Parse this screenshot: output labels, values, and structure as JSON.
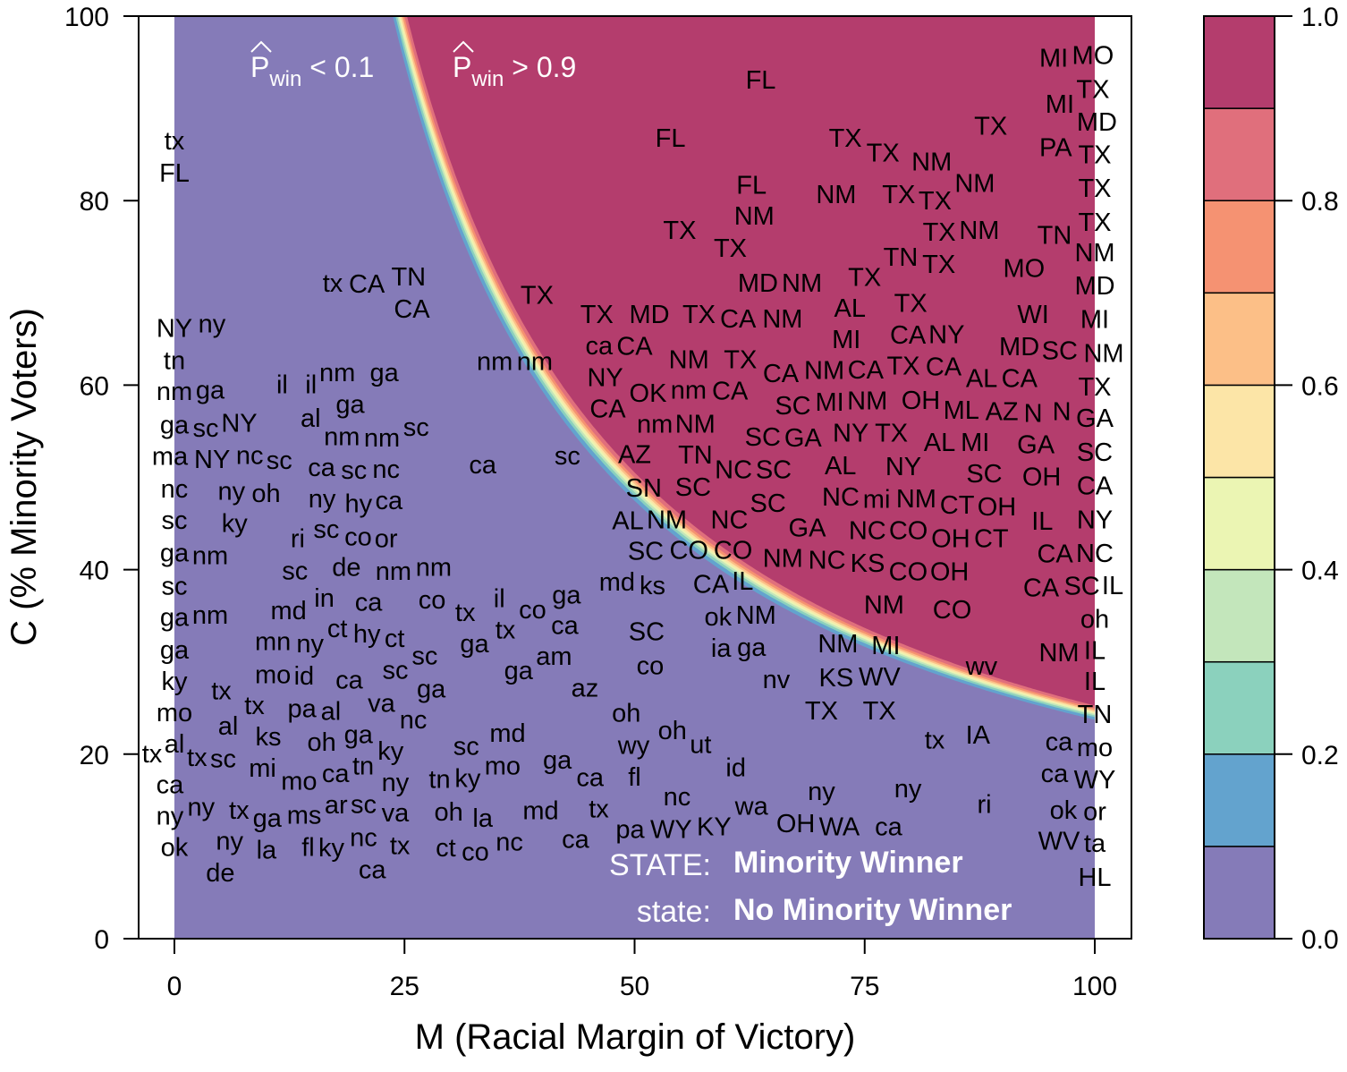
{
  "chart_data": {
    "type": "heatmap",
    "title": "",
    "xlabel": "M (Racial Margin of Victory)",
    "ylabel": "C (% Minority Voters)",
    "xlim": [
      0,
      100
    ],
    "ylim": [
      0,
      100
    ],
    "x_ticks": [
      "0",
      "25",
      "50",
      "75",
      "100"
    ],
    "y_ticks": [
      "0",
      "20",
      "40",
      "60",
      "80",
      "100"
    ],
    "surface": {
      "description_of_boundary": "P_win = 0.5 where M*C ≈ 2450",
      "midpoint_product": 2450,
      "scale": 35
    },
    "colorbar": {
      "breaks": [
        0,
        0.1,
        0.2,
        0.3,
        0.4,
        0.5,
        0.6,
        0.7,
        0.8,
        0.9,
        1.0
      ],
      "colors": [
        "#857BB8",
        "#63A3CE",
        "#8BD1BD",
        "#C3E6BB",
        "#EBF5B3",
        "#FCE5A7",
        "#FCBF87",
        "#F59272",
        "#E06F7C",
        "#B43D6D"
      ],
      "tick_labels": [
        "0.0",
        "0.2",
        "0.4",
        "0.6",
        "0.8",
        "1.0"
      ]
    },
    "annotations": {
      "low": {
        "p": "P",
        "sub": "win",
        "rest": " < 0.1"
      },
      "high": {
        "p": "P",
        "sub": "win",
        "rest": " > 0.9"
      },
      "legend_upper_key": "STATE:",
      "legend_upper_value": "Minority Winner",
      "legend_lower_key": "state:",
      "legend_lower_value": "No Minority Winner"
    },
    "points": [
      [
        "FL",
        63.7,
        93.0
      ],
      [
        "FL",
        53.9,
        86.7
      ],
      [
        "TX",
        72.9,
        86.7
      ],
      [
        "TX",
        76.5,
        85.1
      ],
      [
        "TX",
        88.7,
        88.0
      ],
      [
        "FL",
        62.7,
        81.6
      ],
      [
        "NM",
        63.0,
        80.6
      ],
      [
        "NM",
        71.9,
        80.6
      ],
      [
        "TX",
        78.7,
        80.6
      ],
      [
        "TX",
        80.7,
        79.9
      ],
      [
        "NM",
        86.0,
        81.8
      ],
      [
        "NM",
        85.2,
        81.8
      ],
      [
        "TX",
        83.1,
        77.7
      ],
      [
        "NM",
        86.0,
        76.7
      ],
      [
        "TX",
        54.9,
        76.7
      ],
      [
        "TX",
        60.4,
        76.7
      ],
      [
        "TN",
        79.4,
        73.8
      ],
      [
        "TX",
        81.6,
        73.8
      ],
      [
        "MD",
        63.4,
        71.0
      ],
      [
        "NM",
        64.3,
        71.0
      ],
      [
        "MO",
        92.3,
        72.6
      ],
      [
        "TX",
        39.4,
        69.7
      ],
      [
        "TX",
        45.9,
        67.6
      ],
      [
        "MD",
        51.6,
        67.6
      ],
      [
        "TX",
        57.0,
        67.6
      ],
      [
        "CA",
        59.3,
        67.1
      ],
      [
        "NM",
        65.1,
        67.1
      ],
      [
        "AL",
        73.4,
        68.3
      ],
      [
        "TX",
        75.0,
        69.7
      ],
      [
        "TX",
        80.0,
        68.8
      ],
      [
        "CA",
        79.7,
        67.3
      ],
      [
        "WI",
        93.3,
        67.6
      ],
      [
        "CA",
        50.0,
        65.7
      ],
      [
        "ca",
        47.6,
        64.6
      ],
      [
        "NY",
        46.8,
        63.1
      ],
      [
        "NM",
        55.9,
        62.7
      ],
      [
        "TX",
        61.5,
        62.7
      ],
      [
        "MI",
        73.0,
        64.9
      ],
      [
        "TX",
        79.2,
        65.9
      ],
      [
        "CA",
        78.5,
        63.9
      ],
      [
        "CA",
        79.2,
        63.1
      ],
      [
        "NY",
        83.9,
        63.1
      ],
      [
        "MD",
        91.8,
        64.9
      ],
      [
        "SC",
        95.7,
        63.7
      ],
      [
        "CA",
        92.3,
        62.2
      ],
      [
        "AL",
        91.6,
        62.2
      ],
      [
        "NM",
        71.1,
        62.7
      ],
      [
        "CA",
        65.4,
        61.2
      ],
      [
        "OK",
        50.0,
        61.0
      ],
      [
        "MI",
        71.2,
        60.8
      ],
      [
        "OH",
        81.1,
        61.0
      ],
      [
        "AZ",
        89.9,
        60.2
      ],
      [
        "CA",
        50.0,
        59.3
      ],
      [
        "nm",
        54.9,
        59.4
      ],
      [
        "CA",
        59.4,
        59.3
      ],
      [
        "NM",
        74.8,
        59.4
      ],
      [
        "TX",
        77.9,
        59.4
      ],
      [
        "NY",
        76.4,
        59.4
      ],
      [
        "SC",
        67.2,
        58.5
      ],
      [
        "GA",
        68.3,
        57.3
      ],
      [
        "AL",
        71.4,
        57.8
      ],
      [
        "ML",
        82.1,
        58.4
      ],
      [
        "MI",
        87.0,
        58.4
      ],
      [
        "AL",
        84.6,
        58.0
      ],
      [
        "nm",
        52.2,
        56.9
      ],
      [
        "NM",
        56.1,
        56.9
      ],
      [
        "N",
        89.9,
        56.9
      ],
      [
        "GA",
        93.6,
        56.2
      ],
      [
        "SC",
        88.0,
        55.4
      ],
      [
        "TN",
        56.6,
        54.7
      ],
      [
        "SC",
        68.3,
        54.7
      ],
      [
        "NY",
        79.2,
        54.2
      ],
      [
        "NM",
        80.6,
        54.2
      ],
      [
        "CT",
        83.1,
        54.7
      ],
      [
        "NC",
        58.8,
        53.5
      ],
      [
        "SC",
        62.2,
        53.5
      ],
      [
        "AZ",
        50.0,
        52.8
      ],
      [
        "SC",
        64.5,
        51.0
      ],
      [
        "NC",
        72.4,
        52.1
      ],
      [
        "SC",
        58.3,
        51.6
      ],
      [
        "SN",
        51.0,
        51.1
      ],
      [
        "NM",
        53.5,
        50.8
      ],
      [
        "NC",
        60.3,
        50.0
      ],
      [
        "GA",
        67.3,
        50.3
      ],
      [
        "NC",
        75.3,
        50.8
      ],
      [
        "CO",
        77.8,
        50.8
      ],
      [
        "OH",
        84.5,
        51.8
      ],
      [
        "OH",
        88.4,
        50.8
      ],
      [
        "mi",
        83.1,
        49.9
      ],
      [
        "NC",
        70.9,
        50.3
      ],
      [
        "AL",
        51.7,
        47.2
      ],
      [
        "CO",
        55.9,
        46.3
      ],
      [
        "CO",
        60.7,
        46.3
      ],
      [
        "OH",
        79.0,
        46.0
      ],
      [
        "CT",
        83.9,
        46.0
      ],
      [
        "IL",
        94.3,
        45.2
      ],
      [
        "CA",
        58.3,
        43.8
      ],
      [
        "SC",
        55.1,
        43.1
      ],
      [
        "IL",
        59.8,
        41.8
      ],
      [
        "NM",
        66.6,
        43.1
      ],
      [
        "KS",
        72.4,
        41.4
      ],
      [
        "CO",
        77.3,
        39.7
      ],
      [
        "OH",
        81.3,
        39.7
      ],
      [
        "NM",
        77.1,
        37.7
      ],
      [
        "CO",
        84.5,
        35.6
      ],
      [
        "NM",
        63.2,
        35.8
      ],
      [
        "ok",
        61.5,
        36.0
      ],
      [
        "ga",
        62.7,
        32.7
      ],
      [
        "ia",
        59.4,
        33.0
      ],
      [
        "NM",
        72.1,
        31.9
      ],
      [
        "KS",
        71.9,
        29.8
      ],
      [
        "WV",
        73.7,
        29.5
      ],
      [
        "MI",
        77.3,
        29.0
      ],
      [
        "TX",
        70.3,
        26.6
      ],
      [
        "TX",
        76.6,
        26.6
      ],
      [
        "nv",
        65.4,
        28.8
      ],
      [
        "wv",
        87.7,
        29.5
      ],
      [
        "SC",
        51.3,
        33.2
      ],
      [
        "co",
        51.7,
        30.3
      ],
      [
        "md",
        48.1,
        39.0
      ],
      [
        "ks",
        50.0,
        38.2
      ],
      [
        "ga",
        42.6,
        37.2
      ],
      [
        "az",
        44.6,
        27.1
      ],
      [
        "ga",
        37.4,
        29.0
      ],
      [
        "am",
        39.3,
        29.0
      ],
      [
        "oh",
        49.1,
        24.4
      ],
      [
        "wy",
        49.9,
        21.7
      ],
      [
        "oh",
        54.1,
        22.5
      ],
      [
        "ut",
        56.2,
        21.0
      ],
      [
        "id",
        61.0,
        18.5
      ],
      [
        "fl",
        50.0,
        18.6
      ],
      [
        "ga",
        41.6,
        19.3
      ],
      [
        "ca",
        43.7,
        17.4
      ],
      [
        "md",
        36.2,
        22.2
      ],
      [
        "sc",
        31.7,
        20.8
      ],
      [
        "mo",
        34.2,
        20.6
      ],
      [
        "ny",
        70.3,
        15.9
      ],
      [
        "ny",
        79.7,
        16.2
      ],
      [
        "tx",
        82.6,
        21.5
      ],
      [
        "IA",
        87.3,
        22.0
      ],
      [
        "ri",
        88.0,
        14.5
      ],
      [
        "ca",
        77.6,
        11.3
      ],
      [
        "wa",
        62.7,
        14.3
      ],
      [
        "OH",
        67.5,
        13.2
      ],
      [
        "KY",
        63.5,
        11.7
      ],
      [
        "WA",
        66.9,
        11.7
      ],
      [
        "WY",
        56.4,
        10.6
      ],
      [
        "nc",
        55.1,
        13.0
      ],
      [
        "pa",
        50.0,
        10.6
      ],
      [
        "tx",
        50.0,
        14.8
      ],
      [
        "md",
        39.8,
        13.8
      ],
      [
        "ca",
        43.1,
        14.2
      ],
      [
        "ky",
        34.3,
        17.7
      ],
      [
        "tn",
        29.3,
        17.2
      ],
      [
        "oh",
        29.8,
        15.6
      ],
      [
        "la",
        33.5,
        13.0
      ],
      [
        "co",
        32.7,
        10.9
      ],
      [
        "ct",
        32.4,
        9.8
      ],
      [
        "nc",
        36.4,
        14.7
      ],
      [
        "nm",
        34.8,
        62.5
      ],
      [
        "nm",
        37.7,
        62.5
      ],
      [
        "ca",
        33.5,
        51.3
      ],
      [
        "sc",
        42.7,
        52.3
      ],
      [
        "tx",
        31.6,
        35.3
      ],
      [
        "ga",
        32.6,
        32.7
      ],
      [
        "il",
        35.3,
        36.8
      ],
      [
        "co",
        39.4,
        35.6
      ],
      [
        "ca",
        39.5,
        33.9
      ],
      [
        "tx",
        37.9,
        33.4
      ],
      [
        "tx",
        0,
        86.4
      ],
      [
        "FL",
        0,
        83.3
      ],
      [
        "NY",
        0,
        66.1
      ],
      [
        "ny",
        3.6,
        66.6
      ],
      [
        "tn",
        0,
        63.4
      ],
      [
        "nm",
        0,
        61.2
      ],
      [
        "ga",
        0,
        59.4
      ],
      [
        "ga",
        0,
        56.4
      ],
      [
        "sc",
        0,
        55.3
      ],
      [
        "NY",
        5.1,
        56.6
      ],
      [
        "NY",
        4.1,
        54.2
      ],
      [
        "nc",
        4.3,
        53.5
      ],
      [
        "tx",
        17.2,
        71.0
      ],
      [
        "CA",
        20.9,
        70.9
      ],
      [
        "TN",
        23.5,
        71.7
      ],
      [
        "CA",
        25.8,
        70.9
      ],
      [
        "nm",
        17.7,
        61.3
      ],
      [
        "ga",
        22.8,
        61.3
      ],
      [
        "il",
        11.7,
        60.0
      ],
      [
        "il",
        16.3,
        60.0
      ],
      [
        "ga",
        19.1,
        59.4
      ],
      [
        "al",
        14.8,
        57.9
      ],
      [
        "nm",
        18.2,
        57.1
      ],
      [
        "nm",
        20.6,
        55.0
      ],
      [
        "sc",
        24.8,
        55.4
      ],
      [
        "sc",
        10.9,
        51.8
      ],
      [
        "nc",
        23.0,
        51.6
      ],
      [
        "ny",
        6.2,
        50.8
      ],
      [
        "oh",
        8.5,
        51.3
      ],
      [
        "ca",
        16.0,
        51.8
      ],
      [
        "sc",
        19.5,
        51.5
      ],
      [
        "ny",
        17.5,
        52.3
      ],
      [
        "hy",
        20.0,
        49.8
      ],
      [
        "ca",
        19.9,
        48.6
      ],
      [
        "ky",
        7.5,
        46.5
      ],
      [
        "sc",
        17.0,
        45.5
      ],
      [
        "ri",
        13.4,
        43.3
      ],
      [
        "co",
        19.0,
        43.5
      ],
      [
        "or",
        23.0,
        43.3
      ],
      [
        "nm",
        23.8,
        42.1
      ],
      [
        "sc",
        13.1,
        40.6
      ],
      [
        "de",
        18.7,
        40.2
      ],
      [
        "in",
        15.8,
        39.2
      ],
      [
        "nm",
        23.8,
        40.2
      ],
      [
        "co",
        28.0,
        38.2
      ],
      [
        "ca",
        21.1,
        37.2
      ],
      [
        "md",
        12.4,
        35.5
      ],
      [
        "ct",
        17.7,
        35.5
      ],
      [
        "mn",
        10.7,
        34.1
      ],
      [
        "ny",
        12.8,
        31.9
      ],
      [
        "mo",
        10.7,
        30.5
      ],
      [
        "id",
        13.6,
        28.8
      ],
      [
        "sc",
        27.2,
        30.6
      ],
      [
        "ga",
        27.9,
        27.8
      ],
      [
        "tx",
        5.1,
        26.8
      ],
      [
        "tx",
        8.7,
        26.4
      ],
      [
        "al",
        6.8,
        23.0
      ],
      [
        "ks",
        10.2,
        23.0
      ],
      [
        "sc",
        5.3,
        21.0
      ],
      [
        "tx",
        4.4,
        19.6
      ],
      [
        "ny",
        2.9,
        14.2
      ],
      [
        "ma",
        0,
        53.0
      ],
      [
        "nc",
        0,
        51.0
      ],
      [
        "sc",
        0,
        48.0
      ],
      [
        "ga",
        0,
        46.0
      ],
      [
        "nm",
        0,
        43.0
      ],
      [
        "sc",
        0,
        40.5
      ],
      [
        "ga",
        0,
        37.5
      ],
      [
        "nm",
        0,
        35.0
      ],
      [
        "ga",
        0,
        32.0
      ],
      [
        "ky",
        0,
        29.0
      ],
      [
        "mo",
        0,
        26.0
      ],
      [
        "al",
        0,
        23.0
      ],
      [
        "tx",
        0,
        20.0
      ],
      [
        "ca",
        0,
        17.0
      ],
      [
        "ny",
        0,
        14.0
      ],
      [
        "ok",
        0,
        11.0
      ],
      [
        "hy",
        18.0,
        33.0
      ],
      [
        "ct",
        21.0,
        32.5
      ],
      [
        "sc",
        24.0,
        31.0
      ],
      [
        "ca",
        19.0,
        28.0
      ],
      [
        "va",
        22.0,
        27.0
      ],
      [
        "nc",
        24.5,
        26.0
      ],
      [
        "al",
        17.0,
        25.0
      ],
      [
        "ga",
        20.0,
        24.0
      ],
      [
        "ky",
        23.0,
        23.0
      ],
      [
        "oh",
        16.0,
        22.0
      ],
      [
        "tn",
        21.0,
        21.0
      ],
      [
        "ny",
        24.0,
        20.0
      ],
      [
        "ca",
        18.0,
        19.0
      ],
      [
        "sc",
        22.5,
        18.0
      ],
      [
        "mo",
        15.0,
        17.0
      ],
      [
        "ar",
        20.0,
        16.0
      ],
      [
        "va",
        24.0,
        15.5
      ],
      [
        "ms",
        17.5,
        14.5
      ],
      [
        "nc",
        22.0,
        14.0
      ],
      [
        "ga",
        13.0,
        13.0
      ],
      [
        "ky",
        19.0,
        12.5
      ],
      [
        "tx",
        24.5,
        12.0
      ],
      [
        "la",
        10.0,
        11.5
      ],
      [
        "fl",
        15.5,
        11.0
      ],
      [
        "ca",
        21.5,
        10.5
      ],
      [
        "ny",
        6.0,
        10.5
      ],
      [
        "tx",
        8.0,
        13.5
      ],
      [
        "mi",
        12.0,
        20.0
      ],
      [
        "pa",
        9.0,
        17.5
      ],
      [
        "de",
        5.0,
        16.0
      ],
      [
        "MO",
        99.8,
        95.7
      ],
      [
        "MI",
        97.0,
        95.4
      ],
      [
        "TX",
        99.8,
        92.0
      ],
      [
        "MI",
        96.2,
        90.4
      ],
      [
        "MD",
        97.8,
        90.4
      ],
      [
        "TX",
        100,
        88.0
      ],
      [
        "PA",
        97.7,
        85.7
      ],
      [
        "TX",
        100,
        84.0
      ],
      [
        "TX",
        100,
        78.0
      ],
      [
        "NM",
        100,
        77.0
      ],
      [
        "TN",
        100,
        75.8
      ],
      [
        "MD",
        100,
        71.5
      ],
      [
        "MI",
        100,
        69.0
      ],
      [
        "NM",
        100,
        66.5
      ],
      [
        "TX",
        100,
        64.0
      ],
      [
        "GA",
        100,
        61.0
      ],
      [
        "SC",
        100,
        58.5
      ],
      [
        "CA",
        100,
        56.0
      ],
      [
        "NY",
        100,
        53.5
      ],
      [
        "N",
        96.9,
        53.6
      ],
      [
        "NC",
        100,
        51.0
      ],
      [
        "CA",
        98.6,
        47.1
      ],
      [
        "SC",
        98.6,
        46.3
      ],
      [
        "IL",
        100,
        45.2
      ],
      [
        "CA",
        100,
        41.1
      ],
      [
        "oh",
        100,
        37.7
      ],
      [
        "IL",
        100,
        33.1
      ],
      [
        "NM",
        100,
        31.7
      ],
      [
        "IL",
        100,
        29.0
      ],
      [
        "TN",
        100,
        26.6
      ],
      [
        "mo",
        100,
        23.0
      ],
      [
        "ca",
        100,
        21.3
      ],
      [
        "WY",
        100,
        19.5
      ],
      [
        "ca",
        100,
        18.6
      ],
      [
        "or",
        100,
        17.2
      ],
      [
        "ok",
        100,
        15.4
      ],
      [
        "ta",
        100,
        13.0
      ],
      [
        "WV",
        100,
        11.7
      ],
      [
        "HL",
        100,
        10.1
      ]
    ]
  }
}
